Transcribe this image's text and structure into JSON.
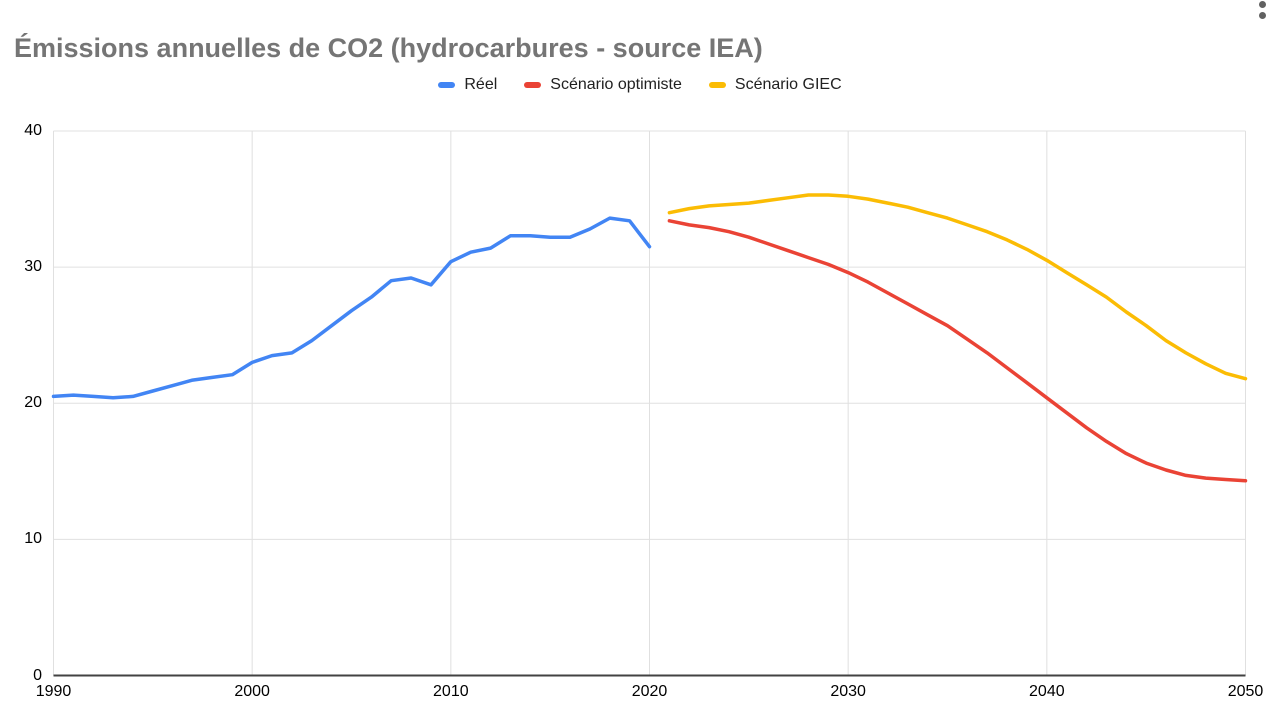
{
  "title": "Émissions annuelles de CO2 (hydrocarbures - source IEA)",
  "icons": {
    "chart_menu": "three-dot-vertical-menu"
  },
  "colors": {
    "title": "#757575",
    "legend_text": "#212121",
    "grid": "#e0e0e0",
    "axis_baseline": "#424242",
    "tick_text": "#000000"
  },
  "chart_data": {
    "type": "line",
    "title": "Émissions annuelles de CO2 (hydrocarbures - source IEA)",
    "xlabel": "",
    "ylabel": "",
    "xlim": [
      1990,
      2050
    ],
    "ylim": [
      0,
      40
    ],
    "x_ticks": [
      1990,
      2000,
      2010,
      2020,
      2030,
      2040,
      2050
    ],
    "y_ticks": [
      0,
      10,
      20,
      30,
      40
    ],
    "grid": true,
    "legend_position": "top",
    "series": [
      {
        "name": "Réel",
        "color": "#4285F4",
        "x": [
          1990,
          1991,
          1992,
          1993,
          1994,
          1995,
          1996,
          1997,
          1998,
          1999,
          2000,
          2001,
          2002,
          2003,
          2004,
          2005,
          2006,
          2007,
          2008,
          2009,
          2010,
          2011,
          2012,
          2013,
          2014,
          2015,
          2016,
          2017,
          2018,
          2019,
          2020
        ],
        "values": [
          20.5,
          20.6,
          20.5,
          20.4,
          20.5,
          20.9,
          21.3,
          21.7,
          21.9,
          22.1,
          23.0,
          23.5,
          23.7,
          24.6,
          25.7,
          26.8,
          27.8,
          29.0,
          29.2,
          28.7,
          30.4,
          31.1,
          31.4,
          32.3,
          32.3,
          32.2,
          32.2,
          32.8,
          33.6,
          33.4,
          31.5
        ]
      },
      {
        "name": "Scénario optimiste",
        "color": "#EA4335",
        "x": [
          2021,
          2022,
          2023,
          2024,
          2025,
          2026,
          2027,
          2028,
          2029,
          2030,
          2031,
          2032,
          2033,
          2034,
          2035,
          2036,
          2037,
          2038,
          2039,
          2040,
          2041,
          2042,
          2043,
          2044,
          2045,
          2046,
          2047,
          2048,
          2049,
          2050
        ],
        "values": [
          33.4,
          33.1,
          32.9,
          32.6,
          32.2,
          31.7,
          31.2,
          30.7,
          30.2,
          29.6,
          28.9,
          28.1,
          27.3,
          26.5,
          25.7,
          24.7,
          23.7,
          22.6,
          21.5,
          20.4,
          19.3,
          18.2,
          17.2,
          16.3,
          15.6,
          15.1,
          14.7,
          14.5,
          14.4,
          14.3
        ]
      },
      {
        "name": "Scénario GIEC",
        "color": "#FBBC04",
        "x": [
          2021,
          2022,
          2023,
          2024,
          2025,
          2026,
          2027,
          2028,
          2029,
          2030,
          2031,
          2032,
          2033,
          2034,
          2035,
          2036,
          2037,
          2038,
          2039,
          2040,
          2041,
          2042,
          2043,
          2044,
          2045,
          2046,
          2047,
          2048,
          2049,
          2050
        ],
        "values": [
          34.0,
          34.3,
          34.5,
          34.6,
          34.7,
          34.9,
          35.1,
          35.3,
          35.3,
          35.2,
          35.0,
          34.7,
          34.4,
          34.0,
          33.6,
          33.1,
          32.6,
          32.0,
          31.3,
          30.5,
          29.6,
          28.7,
          27.8,
          26.7,
          25.7,
          24.6,
          23.7,
          22.9,
          22.2,
          21.8
        ]
      }
    ]
  }
}
